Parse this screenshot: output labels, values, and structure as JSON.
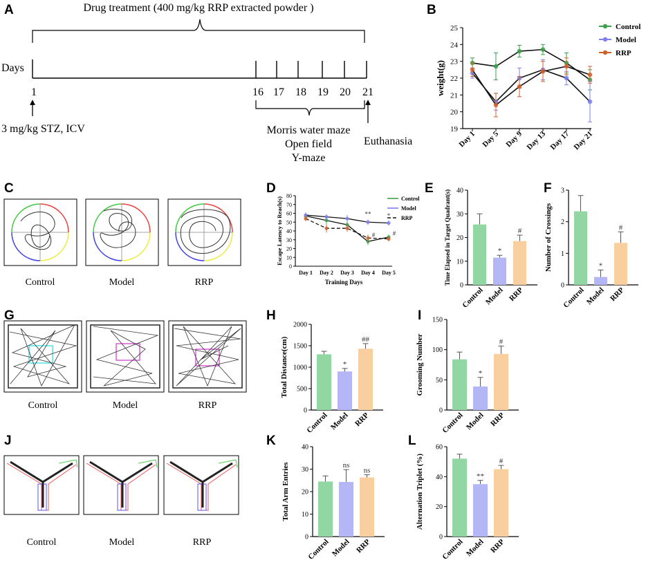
{
  "panels": [
    "A",
    "B",
    "C",
    "D",
    "E",
    "F",
    "G",
    "H",
    "I",
    "J",
    "K",
    "L"
  ],
  "colors": {
    "control": "#92d6a3",
    "model": "#b4b6f6",
    "rrp": "#f9cf9f",
    "control_line": "#3aa04a",
    "model_line": "#7f7ff0",
    "rrp_line": "#d0602a"
  },
  "timeline": {
    "title": "Drug treatment (400 mg/kg RRP extracted powder )",
    "days_label": "Days",
    "day_ticks": [
      "1",
      "16",
      "17",
      "18",
      "19",
      "20",
      "21"
    ],
    "start_note": "3 mg/kg STZ, ICV",
    "tests": [
      "Morris water maze",
      "Open field",
      "Y-maze"
    ],
    "end_note": "Euthanasia"
  },
  "groups": [
    "Control",
    "Model",
    "RRP"
  ],
  "image_captions": {
    "c": [
      "Control",
      "Model",
      "RRP"
    ],
    "g": [
      "Control",
      "Model",
      "RRP"
    ],
    "j": [
      "Control",
      "Model",
      "RRP"
    ]
  },
  "chart_data": [
    {
      "panel": "B",
      "type": "line",
      "ylabel": "weight(g)",
      "categories": [
        "Day 1",
        "Day 5",
        "Day 9",
        "Day 13",
        "Day 17",
        "Day 21"
      ],
      "ylim": [
        19,
        25
      ],
      "yticks": [
        "19",
        "20",
        "21",
        "22",
        "23",
        "24",
        "25"
      ],
      "series": [
        {
          "name": "Control",
          "values": [
            22.9,
            22.7,
            23.6,
            23.7,
            22.9,
            21.9
          ],
          "err": [
            0.3,
            0.8,
            0.35,
            0.3,
            0.6,
            0.6
          ]
        },
        {
          "name": "Model",
          "values": [
            22.3,
            20.6,
            22.0,
            22.5,
            22.0,
            20.6
          ],
          "err": [
            0.3,
            0.5,
            0.6,
            0.6,
            0.4,
            1.2
          ]
        },
        {
          "name": "RRP",
          "values": [
            22.5,
            20.4,
            21.5,
            22.4,
            22.7,
            22.2
          ],
          "err": [
            0.4,
            0.7,
            0.6,
            0.6,
            0.5,
            0.5
          ]
        }
      ]
    },
    {
      "panel": "D",
      "type": "line",
      "ylabel": "Escape Latency to Reach(s)",
      "xlabel": "Training Days",
      "categories": [
        "Day 1",
        "Day 2",
        "Day 3",
        "Day 4",
        "Day 5"
      ],
      "ylim": [
        0,
        80
      ],
      "yticks": [
        "0",
        "10",
        "20",
        "30",
        "40",
        "50",
        "60",
        "70",
        "80"
      ],
      "series": [
        {
          "name": "Control",
          "values": [
            57,
            52,
            47,
            28,
            33
          ],
          "err": [
            3,
            4,
            4,
            4,
            3
          ]
        },
        {
          "name": "Model",
          "values": [
            58,
            56,
            54,
            50,
            49
          ],
          "err": [
            3,
            3,
            4,
            3,
            3
          ]
        },
        {
          "name": "RRP",
          "values": [
            54,
            43,
            43,
            32,
            31
          ],
          "err": [
            3,
            5,
            4,
            4,
            3
          ]
        }
      ],
      "annotations": [
        "**",
        "*",
        "#",
        "#"
      ]
    },
    {
      "panel": "E",
      "type": "bar",
      "ylabel": "Time Elapsed in Target Quadrant(s)",
      "categories": [
        "Control",
        "Model",
        "RRP"
      ],
      "values": [
        25.5,
        11.5,
        18.5
      ],
      "err": [
        4.5,
        1,
        2.5
      ],
      "ylim": [
        0,
        40
      ],
      "yticks": [
        "0",
        "10",
        "20",
        "30",
        "40"
      ],
      "marks": [
        "",
        "*",
        "#"
      ]
    },
    {
      "panel": "F",
      "type": "bar",
      "ylabel": "Number of Crossings",
      "categories": [
        "Control",
        "Model",
        "RRP"
      ],
      "values": [
        2.33,
        0.25,
        1.33
      ],
      "err": [
        0.5,
        0.22,
        0.35
      ],
      "ylim": [
        0,
        3
      ],
      "yticks": [
        "0",
        "1",
        "2",
        "3"
      ],
      "marks": [
        "",
        "*",
        "#"
      ]
    },
    {
      "panel": "H",
      "type": "bar",
      "ylabel": "Total Distance(cm)",
      "categories": [
        "Control",
        "Model",
        "RRP"
      ],
      "values": [
        1300,
        900,
        1430
      ],
      "err": [
        70,
        70,
        120
      ],
      "ylim": [
        0,
        2000
      ],
      "yticks": [
        "0",
        "500",
        "1000",
        "1500",
        "2000"
      ],
      "marks": [
        "",
        "*",
        "##"
      ]
    },
    {
      "panel": "I",
      "type": "bar",
      "ylabel": "Grooming Number",
      "categories": [
        "Control",
        "Model",
        "RRP"
      ],
      "values": [
        84,
        39,
        93
      ],
      "err": [
        12,
        15,
        13
      ],
      "ylim": [
        0,
        150
      ],
      "yticks": [
        "0",
        "50",
        "100",
        "150"
      ],
      "marks": [
        "",
        "*",
        "#"
      ]
    },
    {
      "panel": "K",
      "type": "bar",
      "ylabel": "Total Arm Entries",
      "categories": [
        "Control",
        "Model",
        "RRP"
      ],
      "values": [
        24.5,
        24.3,
        26.3
      ],
      "err": [
        2.5,
        5.5,
        1.2
      ],
      "ylim": [
        0,
        40
      ],
      "yticks": [
        "0",
        "10",
        "20",
        "30",
        "40"
      ],
      "marks": [
        "",
        "ns",
        "ns"
      ]
    },
    {
      "panel": "L",
      "type": "bar",
      "ylabel": "Alternation Triplet (%)",
      "categories": [
        "Control",
        "Model",
        "RRP"
      ],
      "values": [
        52,
        35,
        45
      ],
      "err": [
        3,
        2.5,
        2.5
      ],
      "ylim": [
        0,
        60
      ],
      "yticks": [
        "0",
        "20",
        "40",
        "60"
      ],
      "marks": [
        "",
        "**",
        "#"
      ]
    }
  ]
}
